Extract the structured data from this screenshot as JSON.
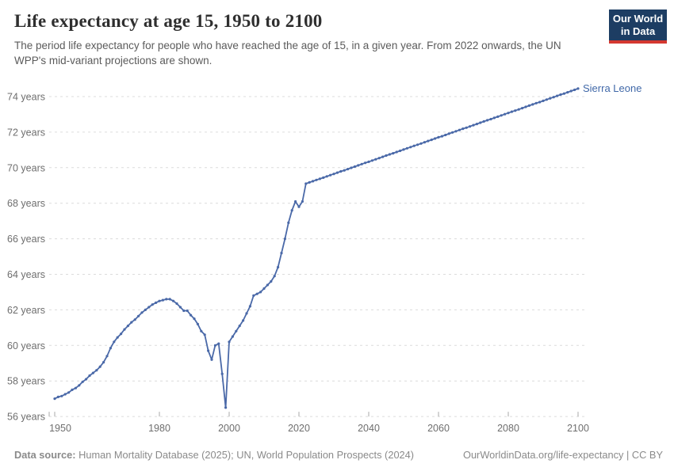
{
  "header": {
    "title": "Life expectancy at age 15, 1950 to 2100",
    "subtitle": "The period life expectancy for people who have reached the age of 15, in a given year. From 2022 onwards, the UN WPP's mid-variant projections are shown.",
    "logo": {
      "line1": "Our World",
      "line2": "in Data"
    }
  },
  "footer": {
    "datasource_label": "Data source:",
    "datasource_text": " Human Mortality Database (2025); UN, World Population Prospects (2024)",
    "link_text": "OurWorldinData.org/life-expectancy | CC BY"
  },
  "chart_data": {
    "type": "line",
    "title": "Life expectancy at age 15, 1950 to 2100",
    "xlabel": "",
    "ylabel": "",
    "entity_label": "Sierra Leone",
    "x_axis": {
      "min": 1950,
      "max": 2100,
      "ticks": [
        1950,
        1980,
        2000,
        2020,
        2040,
        2060,
        2080,
        2100
      ]
    },
    "y_axis": {
      "min": 56,
      "max": 74,
      "ticks": [
        56,
        58,
        60,
        62,
        64,
        66,
        68,
        70,
        72,
        74
      ],
      "tick_suffix": " years"
    },
    "grid": true,
    "legend_position": "end-of-line",
    "projection_start_year": 2022,
    "series": [
      {
        "name": "Sierra Leone",
        "start_year": 1950,
        "values": [
          57.0,
          57.1,
          57.15,
          57.25,
          57.35,
          57.5,
          57.6,
          57.75,
          57.95,
          58.1,
          58.3,
          58.45,
          58.6,
          58.8,
          59.05,
          59.4,
          59.85,
          60.2,
          60.45,
          60.65,
          60.9,
          61.1,
          61.3,
          61.45,
          61.65,
          61.85,
          62.0,
          62.15,
          62.3,
          62.4,
          62.5,
          62.55,
          62.6,
          62.6,
          62.5,
          62.35,
          62.15,
          61.95,
          61.95,
          61.7,
          61.5,
          61.2,
          60.8,
          60.6,
          59.7,
          59.2,
          60.0,
          60.1,
          58.4,
          56.5,
          60.2,
          60.5,
          60.8,
          61.1,
          61.4,
          61.8,
          62.2,
          62.8,
          62.9,
          63.0,
          63.2,
          63.4,
          63.6,
          63.9,
          64.4,
          65.2,
          66.0,
          66.9,
          67.6,
          68.1,
          67.8,
          68.1,
          69.1,
          69.17,
          69.24,
          69.31,
          69.37,
          69.44,
          69.51,
          69.58,
          69.65,
          69.72,
          69.79,
          69.85,
          69.92,
          69.99,
          70.06,
          70.13,
          70.2,
          70.27,
          70.33,
          70.4,
          70.47,
          70.54,
          70.61,
          70.68,
          70.75,
          70.81,
          70.88,
          70.95,
          71.02,
          71.09,
          71.16,
          71.23,
          71.29,
          71.36,
          71.43,
          71.5,
          71.57,
          71.64,
          71.71,
          71.77,
          71.84,
          71.91,
          71.98,
          72.05,
          72.12,
          72.19,
          72.25,
          72.32,
          72.39,
          72.46,
          72.53,
          72.6,
          72.67,
          72.73,
          72.8,
          72.87,
          72.94,
          73.01,
          73.08,
          73.15,
          73.21,
          73.28,
          73.35,
          73.42,
          73.49,
          73.56,
          73.63,
          73.69,
          73.76,
          73.83,
          73.9,
          73.97,
          74.04,
          74.11,
          74.17,
          74.24,
          74.31,
          74.38,
          74.45
        ]
      }
    ],
    "colors": {
      "line": "#4a69a8",
      "entity_label": "#4068a8",
      "grid": "#dcdcdc",
      "axis_text": "#6e6e6e",
      "tick_mark": "#aaaaaa"
    }
  }
}
